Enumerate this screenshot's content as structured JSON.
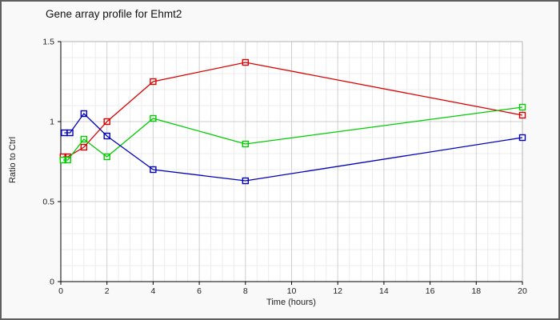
{
  "chart_data": {
    "type": "line",
    "title": "Gene array profile for Ehmt2",
    "xlabel": "Time (hours)",
    "ylabel": "Ratio to Ctrl",
    "xlim": [
      0,
      20
    ],
    "ylim": [
      0,
      1.5
    ],
    "xticks": [
      0,
      2,
      4,
      6,
      8,
      10,
      12,
      14,
      16,
      18,
      20
    ],
    "yticks": [
      0,
      0.5,
      1,
      1.5
    ],
    "ytick_labels": [
      "0",
      "0.5",
      "1",
      "1.5"
    ],
    "grid": {
      "x_minor_step": 0.5,
      "y_minor_step": 0.1,
      "x_major_step": 2,
      "y_major_step": 0.5,
      "minor_color": "#ececec",
      "major_color": "#cfcfcf"
    },
    "legend": "none",
    "marker": "open-square",
    "plot_background": "#ffffff",
    "figure_background": "#f9f9f9",
    "axis_color": "#000000",
    "border_color": "#b4b4b4",
    "series": [
      {
        "name": "series-red",
        "color": "#dd0000",
        "x": [
          0.1,
          0.3,
          1,
          2,
          4,
          8,
          20
        ],
        "y": [
          0.78,
          0.78,
          0.84,
          1.0,
          1.25,
          1.37,
          1.04
        ]
      },
      {
        "name": "series-green",
        "color": "#00cc00",
        "x": [
          0.1,
          0.3,
          1,
          2,
          4,
          8,
          20
        ],
        "y": [
          0.76,
          0.76,
          0.89,
          0.78,
          1.02,
          0.86,
          1.09
        ]
      },
      {
        "name": "series-blue",
        "color": "#0000bb",
        "x": [
          0.15,
          0.4,
          1,
          2,
          4,
          8,
          20
        ],
        "y": [
          0.93,
          0.93,
          1.05,
          0.91,
          0.7,
          0.63,
          0.9
        ]
      }
    ]
  }
}
